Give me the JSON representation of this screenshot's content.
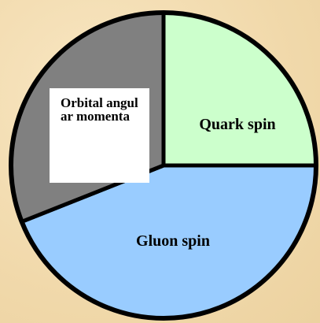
{
  "chart_data": {
    "type": "pie",
    "categories": [
      "Quark spin",
      "Gluon spin",
      "Orbital angular momenta"
    ],
    "values": [
      25,
      44,
      31
    ],
    "colors": [
      "#ccffcc",
      "#99ccff",
      "#808080"
    ]
  }
}
